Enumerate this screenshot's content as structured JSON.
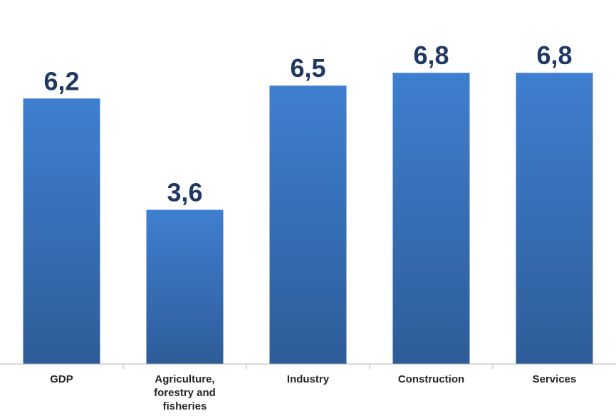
{
  "chart_data": {
    "type": "bar",
    "categories": [
      [
        "GDP"
      ],
      [
        "Agriculture,",
        "forestry and",
        "fisheries"
      ],
      [
        "Industry"
      ],
      [
        "Construction"
      ],
      [
        "Services"
      ]
    ],
    "values": [
      6.2,
      3.6,
      6.5,
      6.8,
      6.8
    ],
    "data_labels": [
      "6,2",
      "3,6",
      "6,5",
      "6,8",
      "6,8"
    ],
    "title": "",
    "xlabel": "",
    "ylabel": "",
    "ylim": [
      0,
      8.5
    ],
    "grid": false,
    "legend": "none",
    "colors": {
      "bar_top": "#3f7fd0",
      "bar_bottom": "#2e5c98",
      "axis": "#b0b0b0",
      "value_label": "#1f3864",
      "category_label": "#262626"
    }
  }
}
